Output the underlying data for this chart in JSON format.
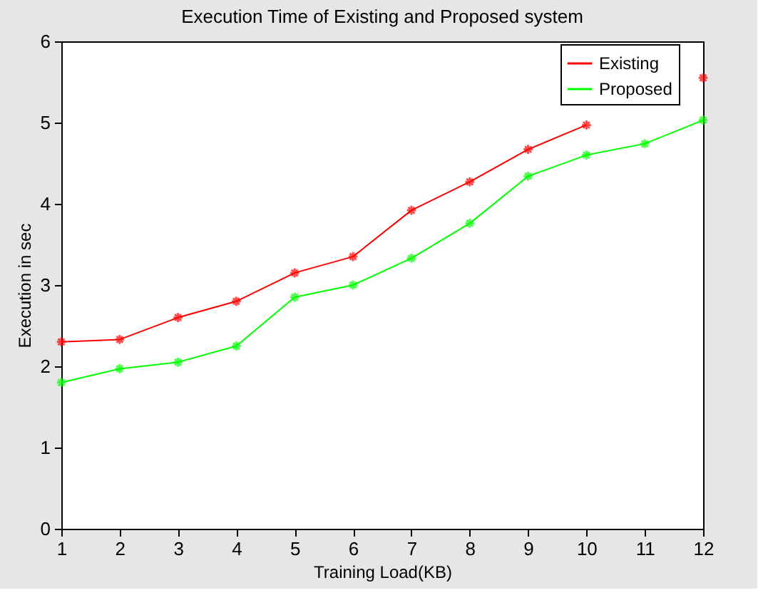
{
  "chart_data": {
    "type": "line",
    "title": "Execution Time of Existing and Proposed system",
    "xlabel": "Training Load(KB)",
    "ylabel": "Execution in sec",
    "x": [
      1,
      2,
      3,
      4,
      5,
      6,
      7,
      8,
      9,
      10,
      11,
      12
    ],
    "series": [
      {
        "name": "Existing",
        "color": "#ff0000",
        "values": [
          2.3,
          2.33,
          2.6,
          2.8,
          3.15,
          3.35,
          3.92,
          4.27,
          4.67,
          4.97,
          null,
          5.55
        ]
      },
      {
        "name": "Proposed",
        "color": "#00ff00",
        "values": [
          1.8,
          1.97,
          2.05,
          2.25,
          2.85,
          3.0,
          3.33,
          3.76,
          4.34,
          4.6,
          4.74,
          5.03
        ]
      }
    ],
    "xlim": [
      1,
      12
    ],
    "xticks": [
      1,
      2,
      3,
      4,
      5,
      6,
      7,
      8,
      9,
      10,
      11,
      12
    ],
    "ylim": [
      0,
      6
    ],
    "yticks": [
      0,
      1,
      2,
      3,
      4,
      5,
      6
    ],
    "grid": false,
    "legend": "top right",
    "marker": "cross",
    "line_style": "solid"
  }
}
